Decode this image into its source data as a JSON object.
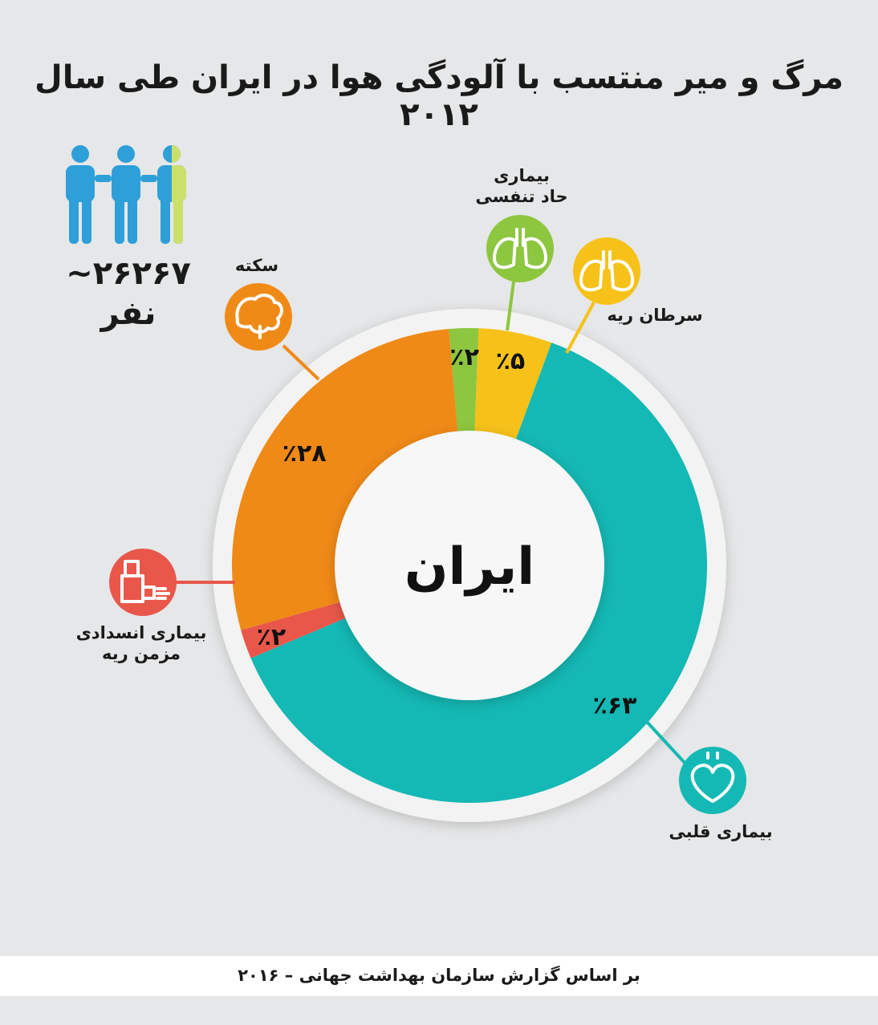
{
  "header": {
    "title": "مرگ و میر منتسب با آلودگی هوا در ایران طی سال ۲۰۱۲"
  },
  "summary": {
    "count": "~۲۶۲۶۷",
    "unit": "نفر"
  },
  "chart_data": {
    "type": "pie",
    "center_label": "ایران",
    "slices": [
      {
        "key": "respiratory",
        "label": "بیماری\nحاد تنفسی",
        "value": 2,
        "value_label": "٪۲",
        "color": "#8dc63f",
        "icon": "lungs-icon"
      },
      {
        "key": "lung_cancer",
        "label": "سرطان ریه",
        "value": 5,
        "value_label": "٪۵",
        "color": "#f6c21a",
        "icon": "lungs-icon"
      },
      {
        "key": "heart",
        "label": "بیماری قلبی",
        "value": 63,
        "value_label": "٪۶۳",
        "color": "#14b8b4",
        "icon": "heart-icon"
      },
      {
        "key": "copd",
        "label": "بیماری انسدادی\nمزمن ریه",
        "value": 2,
        "value_label": "٪۲",
        "color": "#e8574a",
        "icon": "inhaler-icon"
      },
      {
        "key": "stroke",
        "label": "سکته",
        "value": 28,
        "value_label": "٪۲۸",
        "color": "#f08a17",
        "icon": "brain-icon"
      }
    ]
  },
  "footer": {
    "source": "بر اساس گزارش سازمان بهداشت جهانی – ۲۰۱۶"
  }
}
